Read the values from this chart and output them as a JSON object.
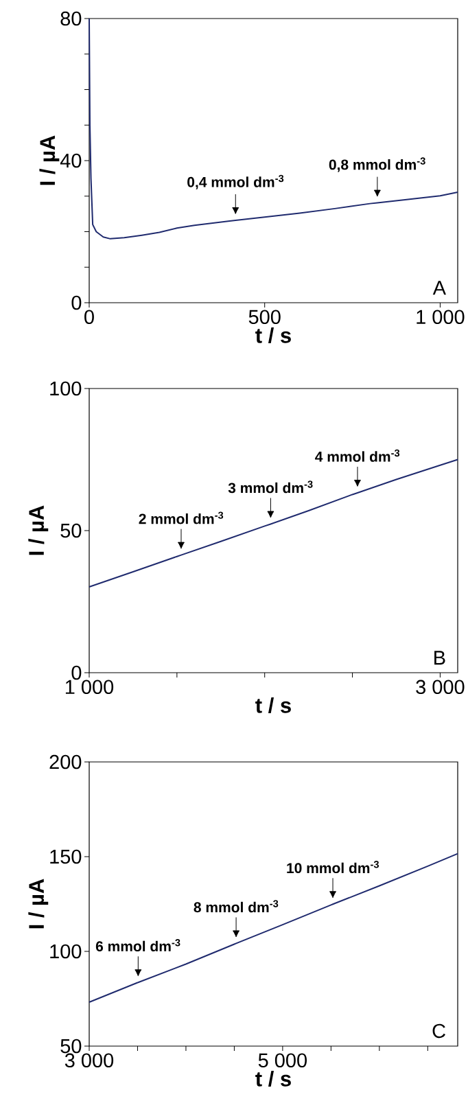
{
  "chart_data": [
    {
      "type": "line",
      "xlabel": "t / s",
      "ylabel": "I / µA",
      "color": "#1f2a6e",
      "line_style": "solid",
      "marker": "none",
      "x": [
        0,
        2,
        5,
        10,
        20,
        40,
        60,
        100,
        150,
        200,
        250,
        300,
        400,
        417,
        500,
        600,
        700,
        800,
        821,
        900,
        1000,
        1050
      ],
      "values": [
        80,
        50,
        35,
        22,
        20,
        18.5,
        18,
        18.3,
        19,
        19.8,
        21,
        21.8,
        23,
        23.2,
        24.1,
        25.2,
        26.5,
        27.9,
        28.1,
        29,
        30.1,
        31.1
      ],
      "xlim": [
        0,
        1050
      ],
      "ylim": [
        0,
        80
      ],
      "xticks": [
        0,
        500,
        {
          "value": 1000,
          "label": "1 000"
        }
      ],
      "yticks": [
        0,
        {
          "value": 10,
          "label": null
        },
        {
          "value": 20,
          "label": null
        },
        {
          "value": 30,
          "label": null
        },
        40,
        {
          "value": 50,
          "label": null
        },
        {
          "value": 60,
          "label": null
        },
        {
          "value": 70,
          "label": null
        },
        80
      ],
      "annotations": [
        {
          "text": "0,4 mmol dm$^{-3}$",
          "x": 417,
          "y": 23.2
        },
        {
          "text": "0,8 mmol dm$^{-3}$",
          "x": 821,
          "y": 28.1
        },
        "A"
      ]
    },
    {
      "type": "line",
      "xlabel": "t / s",
      "ylabel": "I / µA",
      "color": "#1f2a6e",
      "line_style": "solid",
      "marker": "none",
      "x": [
        1000,
        1250,
        1500,
        1524,
        1750,
        2000,
        2034,
        2250,
        2500,
        2529,
        2750,
        3000,
        3100
      ],
      "values": [
        30.2,
        35.5,
        40.9,
        41.4,
        46.2,
        51.6,
        52.3,
        57,
        62.7,
        63.3,
        68,
        73,
        75
      ],
      "xlim": [
        1000,
        3100
      ],
      "ylim": [
        0,
        100
      ],
      "xticks": [
        {
          "value": 1000,
          "label": "1 000"
        },
        {
          "value": 1500,
          "label": null
        },
        {
          "value": 2000,
          "label": null
        },
        {
          "value": 2500,
          "label": null
        },
        {
          "value": 3000,
          "label": "3 000"
        }
      ],
      "yticks": [
        0,
        50,
        100
      ],
      "annotations": [
        {
          "text": "2 mmol dm$^{-3}$",
          "x": 1524,
          "y": 41.4
        },
        {
          "text": "3 mmol dm$^{-3}$",
          "x": 2034,
          "y": 52.3
        },
        {
          "text": "4 mmol dm$^{-3}$",
          "x": 2529,
          "y": 63.3
        },
        "B"
      ]
    },
    {
      "type": "line",
      "xlabel": "t / s",
      "ylabel": "I / µA",
      "color": "#1f2a6e",
      "line_style": "solid",
      "marker": "none",
      "x": [
        3000,
        3500,
        3506,
        4000,
        4500,
        4519,
        5000,
        5500,
        5519,
        6000,
        6500,
        6810
      ],
      "values": [
        73.2,
        83.5,
        83.6,
        93.3,
        103.8,
        104.2,
        114.1,
        124.5,
        124.9,
        134.6,
        145,
        151.6
      ],
      "xlim": [
        3000,
        6810
      ],
      "ylim": [
        50,
        200
      ],
      "xticks": [
        {
          "value": 3000,
          "label": "3 000"
        },
        {
          "value": 3500,
          "label": null
        },
        {
          "value": 4000,
          "label": null
        },
        {
          "value": 4500,
          "label": null
        },
        {
          "value": 5000,
          "label": "5 000"
        },
        {
          "value": 5500,
          "label": null
        },
        {
          "value": 6000,
          "label": null
        },
        {
          "value": 6500,
          "label": null
        }
      ],
      "yticks": [
        50,
        100,
        150,
        200
      ],
      "annotations": [
        {
          "text": "6 mmol dm$^{-3}$",
          "x": 3506,
          "y": 83.6
        },
        {
          "text": "8 mmol dm$^{-3}$",
          "x": 4519,
          "y": 104.2
        },
        {
          "text": "10 mmol dm$^{-3}$",
          "x": 5519,
          "y": 124.9
        },
        "C"
      ]
    }
  ]
}
